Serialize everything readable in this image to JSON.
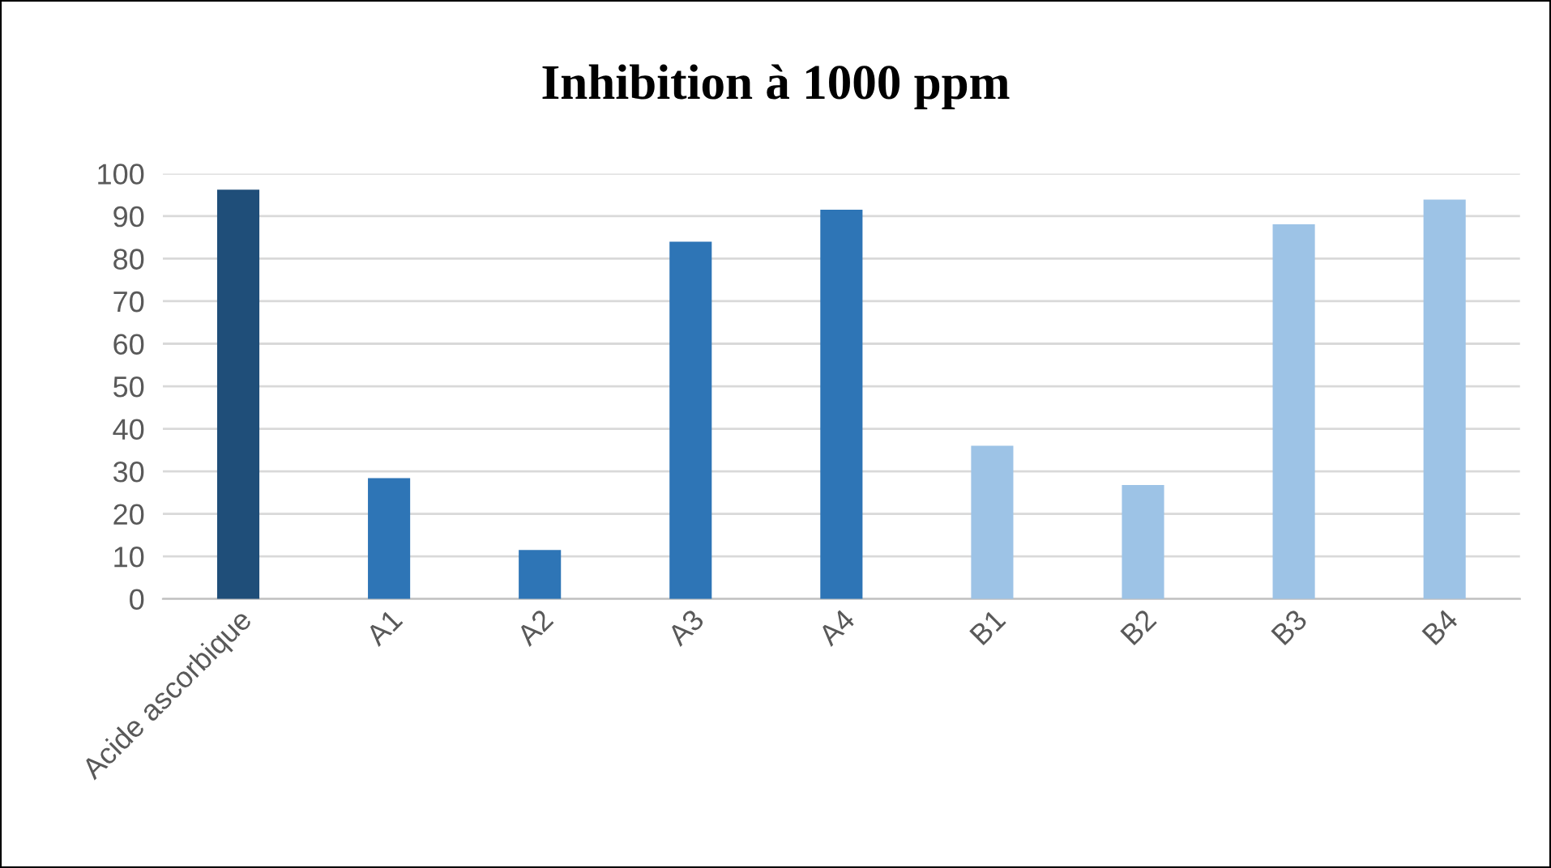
{
  "chart_data": {
    "type": "bar",
    "title": "Inhibition à 1000 ppm",
    "categories": [
      "Acide ascorbique",
      "A1",
      "A2",
      "A3",
      "A4",
      "B1",
      "B2",
      "B3",
      "B4"
    ],
    "values": [
      96.2,
      28.4,
      11.5,
      84,
      91.5,
      36,
      26.8,
      88.1,
      93.9
    ],
    "colors": [
      "#1f4e79",
      "#2e75b6",
      "#2e75b6",
      "#2e75b6",
      "#2e75b6",
      "#9dc3e6",
      "#9dc3e6",
      "#9dc3e6",
      "#9dc3e6"
    ],
    "ylim": [
      0,
      100
    ],
    "yticks": [
      0,
      10,
      20,
      30,
      40,
      50,
      60,
      70,
      80,
      90,
      100
    ],
    "grid": "y"
  }
}
